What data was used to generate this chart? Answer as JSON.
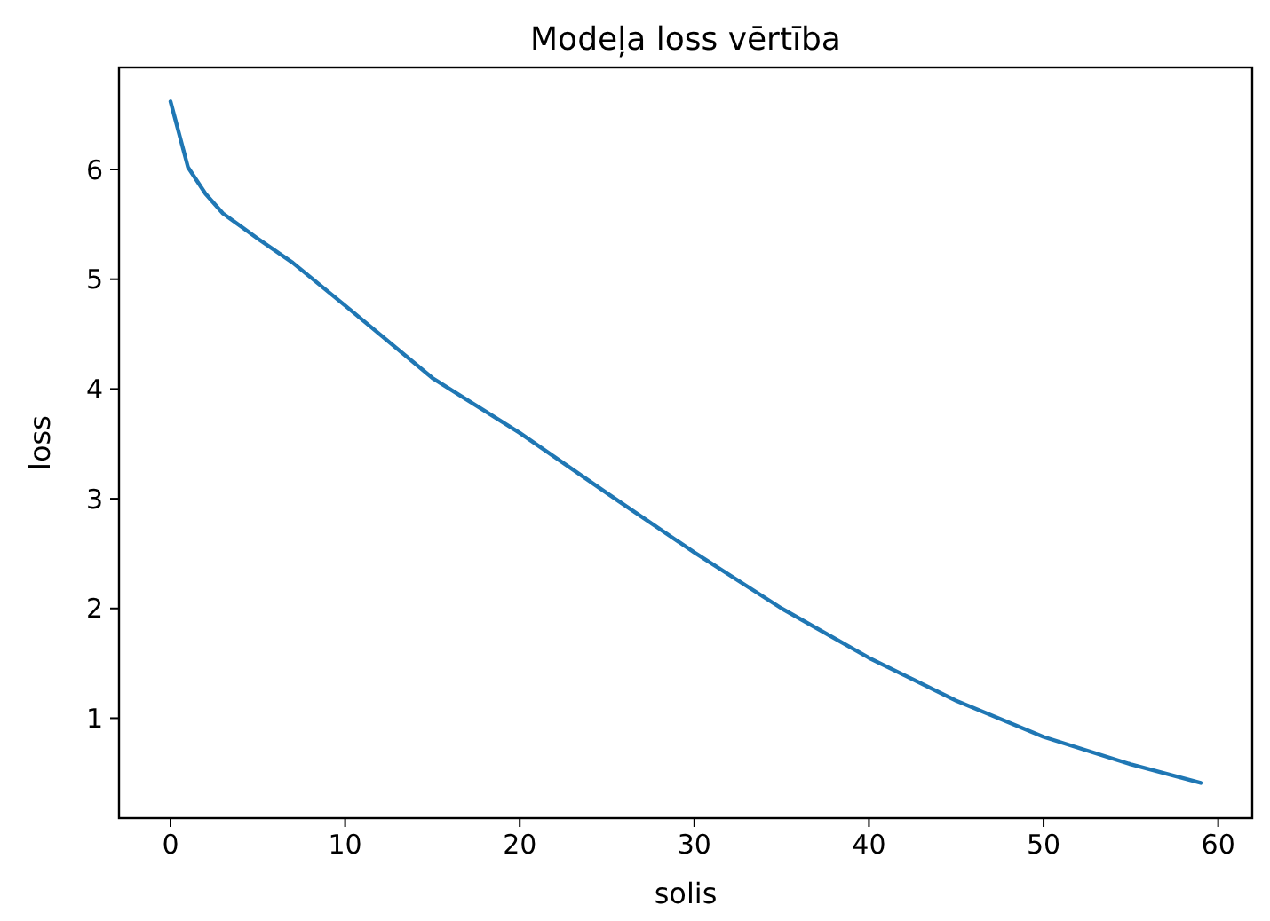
{
  "chart_data": {
    "type": "line",
    "title": "Modeļa loss vērtība",
    "xlabel": "solis",
    "ylabel": "loss",
    "x": [
      0,
      1,
      2,
      3,
      5,
      7,
      10,
      15,
      20,
      25,
      30,
      35,
      40,
      45,
      50,
      55,
      59
    ],
    "series": [
      {
        "color": "#1f77b4",
        "values": [
          6.62,
          6.02,
          5.78,
          5.6,
          5.37,
          5.15,
          4.76,
          4.1,
          3.6,
          3.05,
          2.51,
          2.0,
          1.55,
          1.16,
          0.83,
          0.58,
          0.41
        ]
      }
    ],
    "xlim": [
      -2.95,
      61.95
    ],
    "xticks": [
      0,
      10,
      20,
      30,
      40,
      50,
      60
    ],
    "ylim": [
      0.09,
      6.93
    ],
    "yticks": [
      1,
      2,
      3,
      4,
      5,
      6
    ],
    "line_style": "solid",
    "marker": "none"
  }
}
